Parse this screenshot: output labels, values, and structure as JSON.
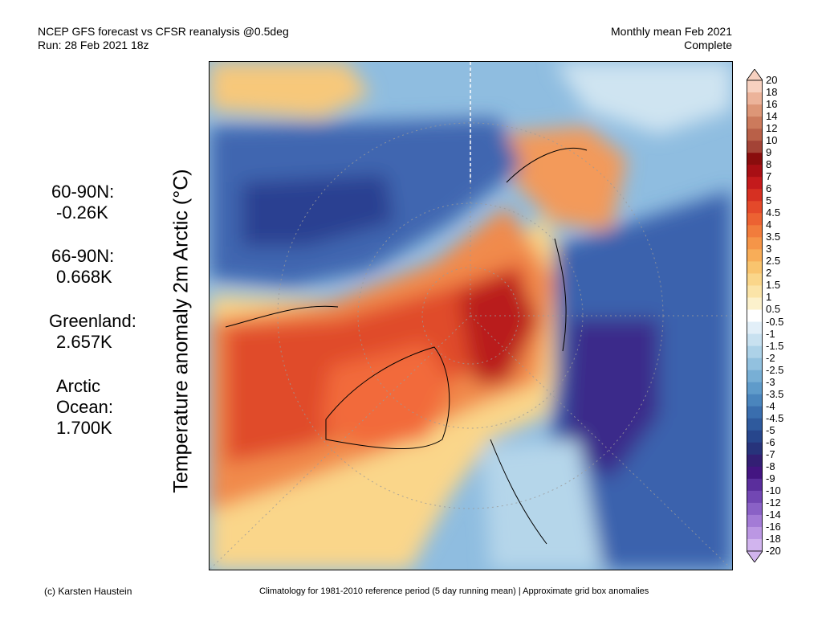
{
  "header": {
    "left_line1": "NCEP GFS forecast vs CFSR reanalysis @0.5deg",
    "left_line2": "Run: 28 Feb 2021 18z",
    "right_line1": "Monthly mean Feb 2021",
    "right_line2": "Complete"
  },
  "axis_label": "Temperature anomaly 2m Arctic (°C)",
  "stats": [
    {
      "label": "60-90N:",
      "value": "-0.26K"
    },
    {
      "label": "66-90N:",
      "value": "0.668K"
    },
    {
      "label": "Greenland:",
      "value": "2.657K"
    },
    {
      "label_line1": "Arctic",
      "label_line2": "Ocean:",
      "value": "1.700K"
    }
  ],
  "colorbar": {
    "ticks": [
      "20",
      "18",
      "16",
      "14",
      "12",
      "10",
      "9",
      "8",
      "7",
      "6",
      "5",
      "4.5",
      "4",
      "3.5",
      "3",
      "2.5",
      "2",
      "1.5",
      "1",
      "0.5",
      "-0.5",
      "-1",
      "-1.5",
      "-2",
      "-2.5",
      "-3",
      "-3.5",
      "-4",
      "-4.5",
      "-5",
      "-6",
      "-7",
      "-8",
      "-9",
      "-10",
      "-12",
      "-14",
      "-16",
      "-18",
      "-20"
    ],
    "colors": [
      "#f7d1c0",
      "#ecb39a",
      "#dd9677",
      "#cc7a5c",
      "#b96048",
      "#a34336",
      "#8a0d0d",
      "#a80f14",
      "#c41a1c",
      "#d63022",
      "#e4492a",
      "#ec6232",
      "#f17c3c",
      "#f59548",
      "#f8ad58",
      "#f9c46e",
      "#fad68a",
      "#fbe4a8",
      "#fcf1cc",
      "#ffffff",
      "#e2eff8",
      "#c8e1f0",
      "#add2e8",
      "#92c1df",
      "#78afd5",
      "#5f9bca",
      "#4a85bd",
      "#3a6eae",
      "#2f5a9d",
      "#27468c",
      "#27337b",
      "#331f74",
      "#431581",
      "#5a2e9c",
      "#7247b3",
      "#8a61c6",
      "#a37bd6",
      "#bb97e3",
      "#d1b4ee"
    ]
  },
  "footer": {
    "left": "(c) Karsten Haustein",
    "right": "Climatology for 1981-2010 reference period (5 day running mean) | Approximate grid box anomalies"
  }
}
